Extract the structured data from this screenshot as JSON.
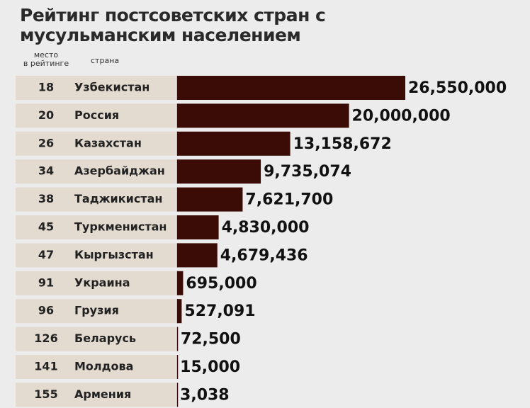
{
  "chart_data": {
    "type": "bar",
    "orientation": "horizontal",
    "title": "Рейтинг постсоветских стран с мусульманским населением",
    "rank_header": [
      "место",
      "в рейтинге"
    ],
    "country_header": "страна",
    "ranks": [
      18,
      20,
      26,
      34,
      38,
      45,
      47,
      91,
      96,
      126,
      141,
      155
    ],
    "categories": [
      "Узбекистан",
      "Россия",
      "Казахстан",
      "Азербайджан",
      "Таджикистан",
      "Туркменистан",
      "Кыргызстан",
      "Украина",
      "Грузия",
      "Беларусь",
      "Молдова",
      "Армения"
    ],
    "values": [
      26550000,
      20000000,
      13158672,
      9735074,
      7621700,
      4830000,
      4679436,
      695000,
      527091,
      72500,
      15000,
      3038
    ],
    "value_labels": [
      "26,550,000",
      "20,000,000",
      "13,158,672",
      "9,735,074",
      "7,621,700",
      "4,830,000",
      "4,679,436",
      "695,000",
      "527,091",
      "72,500",
      "15,000",
      "3,038"
    ],
    "color": "#3b0b06"
  }
}
